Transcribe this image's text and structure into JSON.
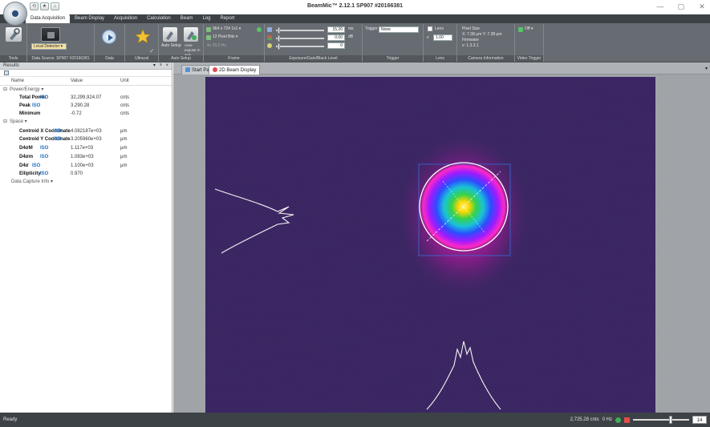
{
  "window": {
    "title": "BeamMic™ 2.12.1 SP907 #20166381",
    "controls": {
      "minimize": "—",
      "maximize": "▢",
      "close": "✕"
    }
  },
  "quick_access": [
    "⟲",
    "★",
    "⌂"
  ],
  "menu": {
    "tabs": [
      "Data Acquisition",
      "Beam Display",
      "Acquisition",
      "Calculation",
      "Beam",
      "Log",
      "Report"
    ],
    "active_index": 0
  },
  "ribbon": {
    "groups": {
      "tools": {
        "label": "Tools"
      },
      "data_source": {
        "label": "Data Source: SP907 #20166381",
        "selector_label": "Local Detector ▾"
      },
      "data": {
        "label": "Data"
      },
      "ultracal": {
        "label": "Ultracal"
      },
      "auto_setup": {
        "label": "Auto Setup",
        "btn_auto": "Auto Setup",
        "btn_auto_x": "Auto-expose X-axis"
      },
      "frame": {
        "label": "Frame",
        "resolution": "964 x 724 1x1 ▾",
        "bits": "12 Pixel Bits ▾",
        "fps": "4x 25.0 Hz"
      },
      "exposure": {
        "label": "Exposure/Gain/Black Level",
        "exposure_value": "15.20",
        "exposure_unit": "ms",
        "gain_value": "0.00",
        "gain_unit": "dB",
        "black_value": "0"
      },
      "trigger": {
        "label": "Trigger",
        "trigger_label": "Trigger",
        "trigger_value": "None"
      },
      "lens": {
        "label": "Lens",
        "lens_label": "Lens",
        "mag_prefix": "v",
        "mag_value": "1.00"
      },
      "camera_info": {
        "label": "Camera Information",
        "pixel_title": "Pixel Size",
        "pixel_xy": "X: 7.38 μm  Y: 7.38 μm",
        "firmware_title": "Firmware",
        "firmware_value": "v: 1.3.3.1"
      },
      "video": {
        "label": "Video Trigger",
        "off_label": "Off ▾"
      }
    }
  },
  "results_panel": {
    "title": "Results",
    "controls": [
      "▾",
      "ᵠ",
      "×"
    ],
    "columns": {
      "name": "Name",
      "value": "Value",
      "unit": "Unit"
    },
    "sections": [
      {
        "toggle": "⊟",
        "label": "Power/Energy ▾"
      },
      {
        "toggle": "⊟",
        "label": "Space ▾"
      }
    ],
    "power_rows": [
      {
        "name": "Total Power",
        "iso": "ISO",
        "value": "32,299,924.07",
        "unit": "cnts"
      },
      {
        "name": "Peak",
        "iso": "ISO",
        "value": "3,290.28",
        "unit": "cnts"
      },
      {
        "name": "Minimum",
        "iso": "",
        "value": "-0.72",
        "unit": "cnts"
      }
    ],
    "space_rows": [
      {
        "name": "Centroid X Coordinate",
        "iso": "ISO",
        "value": "4.082187e+03",
        "unit": "μm"
      },
      {
        "name": "Centroid Y Coordinate",
        "iso": "ISO",
        "value": "3.205960e+03",
        "unit": "μm"
      },
      {
        "name": "D4σM",
        "iso": "ISO",
        "value": "1.117e+03",
        "unit": "μm"
      },
      {
        "name": "D4σm",
        "iso": "ISO",
        "value": "1.083e+03",
        "unit": "μm"
      },
      {
        "name": "D4σ",
        "iso": "ISO",
        "value": "1.100e+03",
        "unit": "μm"
      },
      {
        "name": "Ellipticity",
        "iso": "ISO",
        "value": "0.970",
        "unit": ""
      }
    ],
    "footer": "Data Capture Info ▾"
  },
  "viewer": {
    "tabs": [
      {
        "label": "Start Page"
      },
      {
        "label": "2D Beam Display"
      }
    ],
    "active_index": 1,
    "dropdown": "▾"
  },
  "status": {
    "text": "Ready",
    "counts": "2,725.28 cnts",
    "rate": "0 Hz",
    "zoom_value": "14",
    "zoom_fraction": 0.68
  },
  "colors": {
    "ribbon": "#676c72",
    "beam_background": "#3b2566",
    "accent_red": "#e34b4b",
    "iso_blue": "#1e6fc2"
  }
}
